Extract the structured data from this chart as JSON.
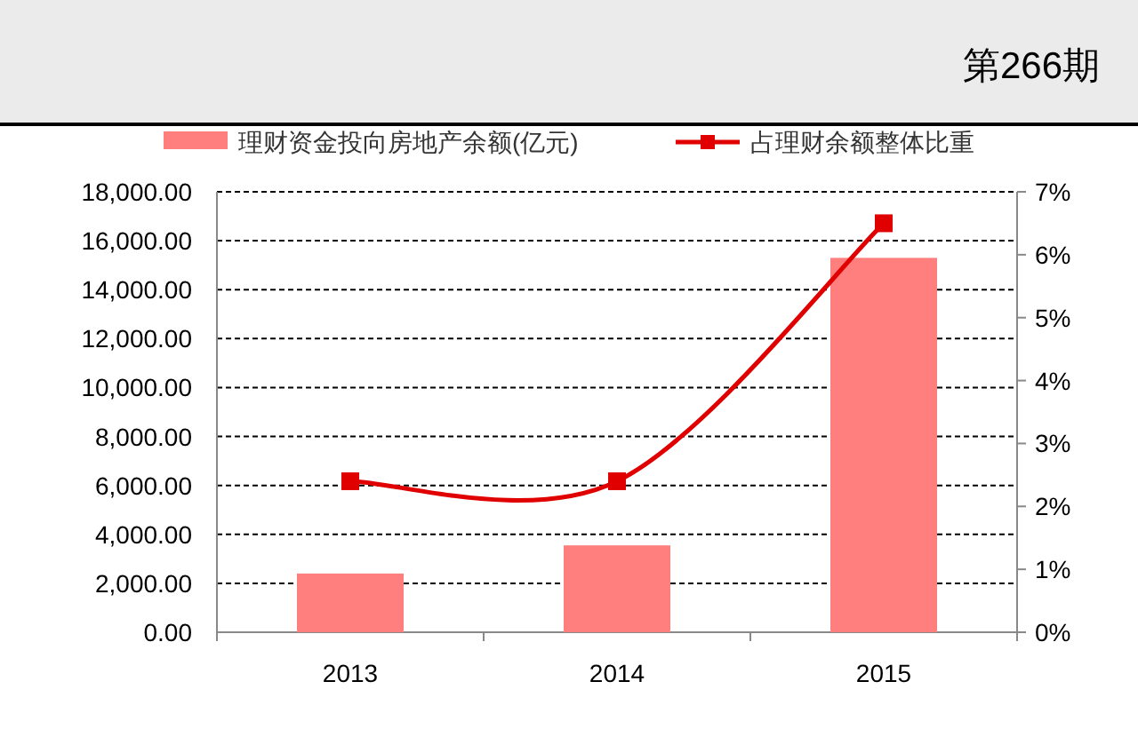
{
  "chart_data": {
    "type": "bar",
    "categories": [
      "2013",
      "2014",
      "2015"
    ],
    "series": [
      {
        "name": "理财资金投向房地产余额(亿元)",
        "color": "#ff7f7f",
        "values": [
          2400,
          3550,
          15300
        ]
      },
      {
        "name": "占理财余额整体比重",
        "type": "line",
        "axis": "y2",
        "color": "#e00000",
        "marker": "square",
        "values": [
          2.4,
          2.4,
          6.5
        ]
      }
    ],
    "ylim": [
      0,
      18000
    ],
    "yticks": [
      {
        "value": 0,
        "label": "0.00"
      },
      {
        "value": 2000,
        "label": "2,000.00"
      },
      {
        "value": 4000,
        "label": "4,000.00"
      },
      {
        "value": 6000,
        "label": "6,000.00"
      },
      {
        "value": 8000,
        "label": "8,000.00"
      },
      {
        "value": 10000,
        "label": "10,000.00"
      },
      {
        "value": 12000,
        "label": "12,000.00"
      },
      {
        "value": 14000,
        "label": "14,000.00"
      },
      {
        "value": 16000,
        "label": "16,000.00"
      },
      {
        "value": 18000,
        "label": "18,000.00"
      }
    ],
    "y2lim": [
      0,
      7
    ],
    "y2ticks": [
      {
        "value": 0,
        "label": "0%"
      },
      {
        "value": 1,
        "label": "1%"
      },
      {
        "value": 2,
        "label": "2%"
      },
      {
        "value": 3,
        "label": "3%"
      },
      {
        "value": 4,
        "label": "4%"
      },
      {
        "value": 5,
        "label": "5%"
      },
      {
        "value": 6,
        "label": "6%"
      },
      {
        "value": 7,
        "label": "7%"
      }
    ],
    "grid": "y",
    "legend": "top",
    "annotations": [
      "第266期"
    ]
  }
}
